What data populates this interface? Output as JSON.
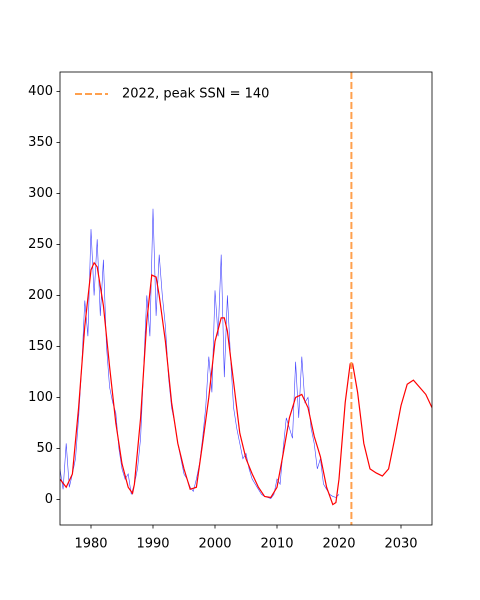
{
  "chart_data": {
    "type": "line",
    "series": [
      {
        "color": "#0000ff",
        "x": [
          1975,
          1975.5,
          1976,
          1976.5,
          1977,
          1977.5,
          1978,
          1978.5,
          1979,
          1979.5,
          1980,
          1980.5,
          1981,
          1981.5,
          1982,
          1982.5,
          1983,
          1983.5,
          1984,
          1984.5,
          1985,
          1985.5,
          1986,
          1986.5,
          1987,
          1987.5,
          1988,
          1988.5,
          1989,
          1989.5,
          1990,
          1990.5,
          1991,
          1991.5,
          1992,
          1992.5,
          1993,
          1993.5,
          1994,
          1994.5,
          1995,
          1995.5,
          1996,
          1996.5,
          1997,
          1997.5,
          1998,
          1998.5,
          1999,
          1999.5,
          2000,
          2000.5,
          2001,
          2001.5,
          2002,
          2002.5,
          2003,
          2003.5,
          2004,
          2004.5,
          2005,
          2005.5,
          2006,
          2006.5,
          2007,
          2007.5,
          2008,
          2008.5,
          2009,
          2009.5,
          2010,
          2010.5,
          2011,
          2011.5,
          2012,
          2012.5,
          2013,
          2013.5,
          2014,
          2014.5,
          2015,
          2015.5,
          2016,
          2016.5,
          2017,
          2017.5,
          2018,
          2018.5,
          2019,
          2019.5,
          2020
        ],
        "values": [
          30,
          10,
          55,
          12,
          25,
          40,
          80,
          130,
          195,
          160,
          265,
          200,
          255,
          180,
          235,
          150,
          110,
          95,
          85,
          50,
          30,
          20,
          25,
          5,
          15,
          30,
          60,
          130,
          200,
          160,
          285,
          180,
          240,
          200,
          170,
          120,
          90,
          75,
          55,
          40,
          25,
          20,
          12,
          8,
          20,
          35,
          60,
          90,
          140,
          105,
          205,
          160,
          240,
          120,
          200,
          140,
          90,
          70,
          55,
          40,
          45,
          30,
          20,
          15,
          10,
          5,
          3,
          2,
          1,
          5,
          20,
          15,
          50,
          80,
          70,
          60,
          135,
          80,
          140,
          95,
          100,
          70,
          55,
          30,
          40,
          15,
          10,
          5,
          3,
          2,
          5
        ]
      },
      {
        "color": "#ff0000",
        "x": [
          1975,
          1976,
          1977,
          1978,
          1979,
          1980,
          1980.5,
          1981,
          1982,
          1983,
          1984,
          1985,
          1986,
          1986.7,
          1987,
          1988,
          1989,
          1989.8,
          1990.5,
          1991,
          1992,
          1993,
          1994,
          1995,
          1996,
          1997,
          1998,
          1999,
          2000,
          2001,
          2001.5,
          2002,
          2003,
          2004,
          2005,
          2006,
          2007,
          2008,
          2009,
          2010,
          2011,
          2012,
          2013,
          2014,
          2015,
          2016,
          2017,
          2018,
          2019,
          2019.5,
          2020,
          2021,
          2021.8,
          2022.2,
          2023,
          2024,
          2025,
          2026,
          2027,
          2028,
          2029,
          2030,
          2031,
          2032,
          2033,
          2034,
          2035
        ],
        "values": [
          20,
          12,
          25,
          90,
          170,
          225,
          232,
          228,
          190,
          130,
          75,
          35,
          12,
          6,
          15,
          80,
          175,
          220,
          218,
          200,
          155,
          95,
          55,
          30,
          10,
          12,
          55,
          100,
          155,
          178,
          178,
          165,
          115,
          65,
          40,
          25,
          12,
          3,
          2,
          12,
          45,
          80,
          100,
          103,
          90,
          62,
          42,
          12,
          -5,
          -3,
          20,
          95,
          133,
          133,
          105,
          55,
          30,
          26,
          23,
          30,
          60,
          92,
          113,
          117,
          110,
          103,
          90
        ]
      }
    ],
    "vlines": [
      {
        "x": 2022,
        "label": "2022, peak SSN = 140",
        "color": "#ffa04d"
      }
    ],
    "xlim": [
      1975,
      2035
    ],
    "xticks": [
      1980,
      1990,
      2000,
      2010,
      2020,
      2030
    ],
    "ylim": [
      -25,
      419
    ],
    "yticks": [
      0,
      50,
      100,
      150,
      200,
      250,
      300,
      350,
      400
    ],
    "legend": "upper left"
  }
}
